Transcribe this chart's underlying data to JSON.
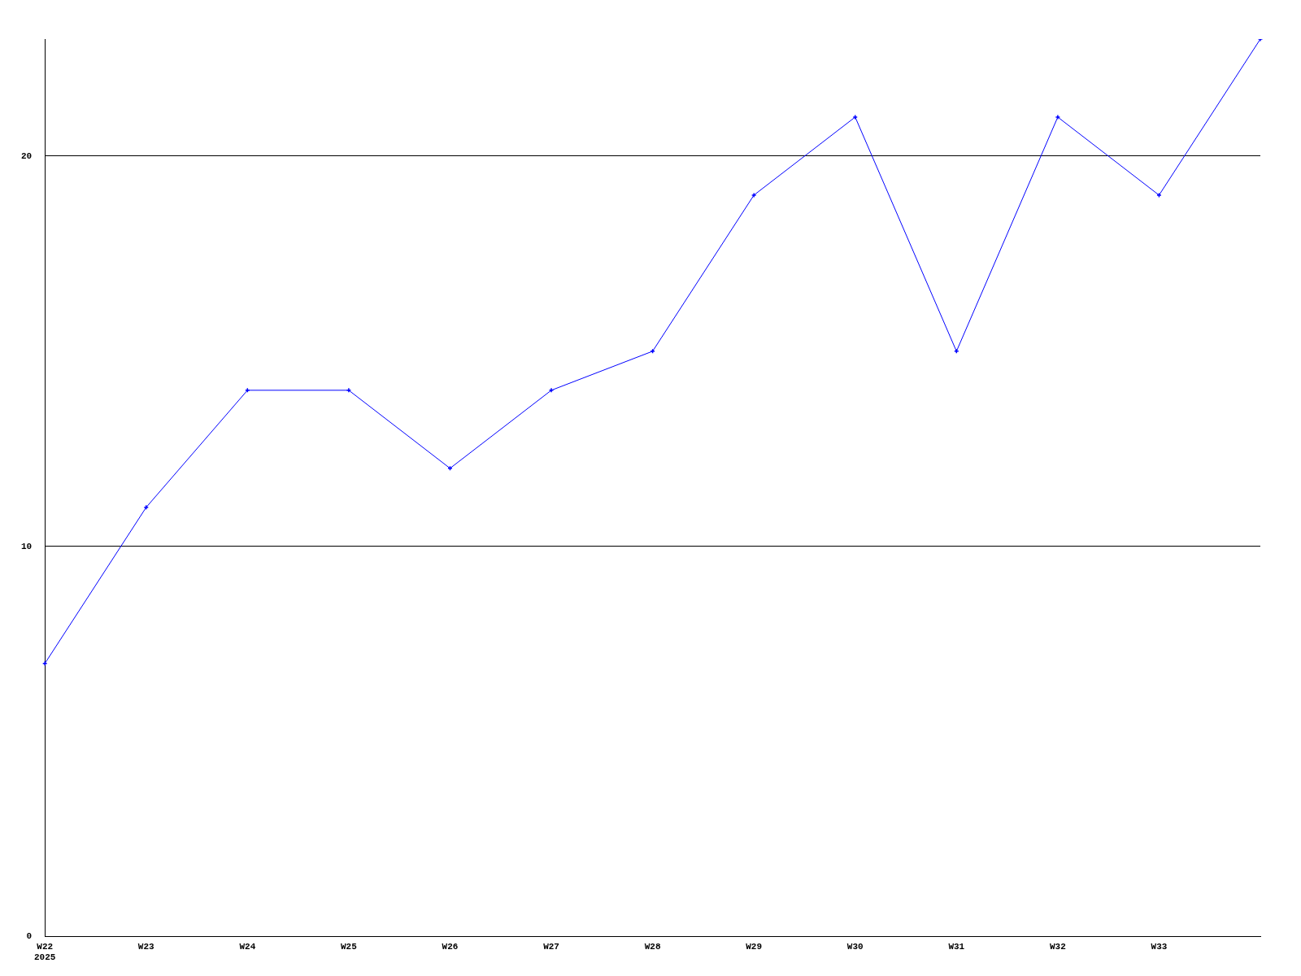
{
  "chart_data": {
    "type": "line",
    "categories": [
      "W22\n2025",
      "W23",
      "W24",
      "W25",
      "W26",
      "W27",
      "W28",
      "W29",
      "W30",
      "W31",
      "W32",
      "W33",
      null
    ],
    "series": [
      {
        "color": "#0000ff",
        "values": [
          7,
          11,
          14,
          14,
          12,
          14,
          15,
          19,
          21,
          15,
          21,
          19,
          23
        ]
      }
    ],
    "ylim": [
      0,
      23
    ],
    "yticks": [
      0,
      10,
      20
    ],
    "grid": "y",
    "legend": false,
    "marker": "cross",
    "line_style": "solid"
  }
}
